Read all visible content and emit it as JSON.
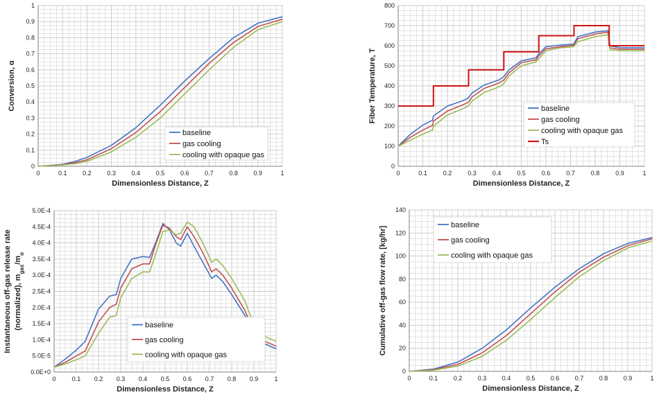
{
  "colors": {
    "baseline": "#4472C4",
    "gas_cooling": "#C0504D",
    "opaque_gas": "#9BBB59",
    "ts": "#CC1111",
    "grid": "#C8C8C8",
    "axis": "#808080"
  },
  "chart_data": [
    {
      "type": "line",
      "xlabel": "Dimensionless Distance, Z",
      "ylabel": "Conversion, α",
      "xlim": [
        0,
        1
      ],
      "ylim": [
        0,
        1
      ],
      "xticks": [
        "0",
        "0.1",
        "0.2",
        "0.3",
        "0.4",
        "0.5",
        "0.6",
        "0.7",
        "0.8",
        "0.9",
        "1"
      ],
      "yticks": [
        "0",
        "0.1",
        "0.2",
        "0.3",
        "0.4",
        "0.5",
        "0.6",
        "0.7",
        "0.8",
        "0.9",
        "1"
      ],
      "legend": "bottom-right",
      "series": [
        {
          "name": "baseline",
          "x": [
            0,
            0.1,
            0.15,
            0.2,
            0.3,
            0.4,
            0.5,
            0.6,
            0.7,
            0.8,
            0.9,
            1
          ],
          "values": [
            0,
            0.012,
            0.03,
            0.055,
            0.13,
            0.24,
            0.38,
            0.53,
            0.67,
            0.8,
            0.89,
            0.93
          ]
        },
        {
          "name": "gas cooling",
          "x": [
            0,
            0.1,
            0.15,
            0.2,
            0.3,
            0.4,
            0.5,
            0.6,
            0.7,
            0.8,
            0.9,
            1
          ],
          "values": [
            0,
            0.01,
            0.022,
            0.04,
            0.11,
            0.21,
            0.34,
            0.49,
            0.64,
            0.77,
            0.87,
            0.915
          ]
        },
        {
          "name": "cooling with opaque gas",
          "x": [
            0,
            0.1,
            0.15,
            0.2,
            0.3,
            0.4,
            0.5,
            0.6,
            0.7,
            0.8,
            0.9,
            1
          ],
          "values": [
            0,
            0.008,
            0.016,
            0.03,
            0.09,
            0.18,
            0.3,
            0.45,
            0.6,
            0.74,
            0.85,
            0.9
          ]
        }
      ]
    },
    {
      "type": "line",
      "xlabel": "Dimensionless Distance, Z",
      "ylabel": "Fiber Temperature, T",
      "xlim": [
        0,
        1
      ],
      "ylim": [
        0,
        800
      ],
      "xticks": [
        "0",
        "0.1",
        "0.2",
        "0.3",
        "0.4",
        "0.5",
        "0.6",
        "0.7",
        "0.8",
        "0.9",
        "1"
      ],
      "yticks": [
        "0",
        "100",
        "200",
        "300",
        "400",
        "500",
        "600",
        "700",
        "800"
      ],
      "legend": "bottom-right",
      "series": [
        {
          "name": "baseline",
          "x": [
            0,
            0.05,
            0.1,
            0.14,
            0.143,
            0.2,
            0.26,
            0.285,
            0.3,
            0.35,
            0.41,
            0.428,
            0.45,
            0.5,
            0.56,
            0.571,
            0.6,
            0.66,
            0.712,
            0.73,
            0.8,
            0.852,
            0.86,
            0.9,
            1
          ],
          "values": [
            100,
            160,
            205,
            230,
            250,
            300,
            325,
            340,
            365,
            405,
            430,
            445,
            480,
            525,
            540,
            560,
            595,
            603,
            608,
            645,
            668,
            675,
            600,
            590,
            590
          ]
        },
        {
          "name": "gas cooling",
          "x": [
            0,
            0.05,
            0.1,
            0.14,
            0.143,
            0.2,
            0.26,
            0.285,
            0.3,
            0.35,
            0.41,
            0.428,
            0.45,
            0.5,
            0.56,
            0.571,
            0.6,
            0.66,
            0.712,
            0.73,
            0.8,
            0.852,
            0.86,
            0.9,
            1
          ],
          "values": [
            100,
            145,
            180,
            205,
            225,
            275,
            305,
            318,
            345,
            388,
            415,
            428,
            465,
            515,
            530,
            550,
            585,
            595,
            602,
            635,
            658,
            668,
            590,
            582,
            582
          ]
        },
        {
          "name": "cooling with opaque gas",
          "x": [
            0,
            0.05,
            0.1,
            0.14,
            0.143,
            0.2,
            0.26,
            0.285,
            0.3,
            0.35,
            0.41,
            0.428,
            0.45,
            0.5,
            0.56,
            0.571,
            0.6,
            0.66,
            0.712,
            0.73,
            0.8,
            0.852,
            0.86,
            0.9,
            1
          ],
          "values": [
            100,
            130,
            160,
            180,
            200,
            255,
            285,
            300,
            325,
            368,
            395,
            410,
            450,
            500,
            520,
            535,
            575,
            590,
            595,
            620,
            645,
            655,
            580,
            575,
            575
          ]
        },
        {
          "name": "Ts",
          "x": [
            0,
            0.143,
            0.143,
            0.286,
            0.286,
            0.429,
            0.429,
            0.571,
            0.571,
            0.714,
            0.714,
            0.857,
            0.857,
            1
          ],
          "values": [
            300,
            300,
            400,
            400,
            480,
            480,
            570,
            570,
            650,
            650,
            700,
            700,
            600,
            600
          ]
        }
      ]
    },
    {
      "type": "line",
      "xlabel": "Dimensionless Distance, Z",
      "ylabel_line1": "Instantaneous off-gas release rate",
      "ylabel_line2": "(normalized), m",
      "ylabel_sub": "gas",
      "ylabel_mid": "/m",
      "ylabel_sub2": "o",
      "xlim": [
        0,
        1
      ],
      "ylim": [
        0,
        0.0005
      ],
      "xticks": [
        "0",
        "0.1",
        "0.2",
        "0.3",
        "0.4",
        "0.5",
        "0.6",
        "0.7",
        "0.8",
        "0.9",
        "1"
      ],
      "yticks": [
        "0.0E+0",
        "5.0E-5",
        "1.0E-4",
        "1.5E-4",
        "2.0E-4",
        "2.5E-4",
        "3.0E-4",
        "3.5E-4",
        "4.0E-4",
        "4.5E-4",
        "5.0E-4"
      ],
      "legend": "bottom-right",
      "series": [
        {
          "name": "baseline",
          "x": [
            0,
            0.05,
            0.1,
            0.14,
            0.2,
            0.25,
            0.28,
            0.3,
            0.35,
            0.4,
            0.43,
            0.46,
            0.49,
            0.52,
            0.55,
            0.57,
            0.6,
            0.63,
            0.67,
            0.71,
            0.73,
            0.76,
            0.8,
            0.86,
            0.9,
            0.95,
            1
          ],
          "values": [
            1.5e-05,
            4e-05,
            6.8e-05,
            9.5e-05,
            0.000195,
            0.000235,
            0.00024,
            0.00029,
            0.00035,
            0.000358,
            0.000355,
            0.000405,
            0.00046,
            0.00044,
            0.0004,
            0.00039,
            0.00043,
            0.00039,
            0.00034,
            0.00029,
            0.0003,
            0.00028,
            0.00024,
            0.000175,
            0.000115,
            8.7e-05,
            7.2e-05
          ]
        },
        {
          "name": "gas cooling",
          "x": [
            0,
            0.05,
            0.1,
            0.14,
            0.2,
            0.25,
            0.28,
            0.3,
            0.35,
            0.4,
            0.43,
            0.46,
            0.49,
            0.52,
            0.55,
            0.57,
            0.6,
            0.63,
            0.67,
            0.71,
            0.73,
            0.76,
            0.8,
            0.86,
            0.9,
            0.95,
            1
          ],
          "values": [
            1.5e-05,
            3e-05,
            5e-05,
            6.5e-05,
            0.000155,
            0.0002,
            0.00021,
            0.00026,
            0.00032,
            0.000335,
            0.000335,
            0.0004,
            0.000455,
            0.000445,
            0.00042,
            0.00041,
            0.00045,
            0.00042,
            0.00037,
            0.00031,
            0.00032,
            0.0003,
            0.00026,
            0.00019,
            0.000125,
            9.5e-05,
            8e-05
          ]
        },
        {
          "name": "cooling with opaque gas",
          "x": [
            0,
            0.05,
            0.1,
            0.14,
            0.2,
            0.25,
            0.28,
            0.3,
            0.35,
            0.4,
            0.43,
            0.46,
            0.49,
            0.52,
            0.55,
            0.57,
            0.6,
            0.63,
            0.67,
            0.71,
            0.73,
            0.76,
            0.8,
            0.86,
            0.9,
            0.95,
            1
          ],
          "values": [
            1.5e-05,
            2.5e-05,
            3.8e-05,
            5e-05,
            0.00012,
            0.00017,
            0.000175,
            0.00023,
            0.00029,
            0.00031,
            0.00031,
            0.00037,
            0.000435,
            0.00044,
            0.000425,
            0.00043,
            0.000465,
            0.00045,
            0.0004,
            0.00034,
            0.00035,
            0.00033,
            0.00029,
            0.00022,
            0.000145,
            0.00011,
            9.5e-05
          ]
        }
      ]
    },
    {
      "type": "line",
      "xlabel": "Dimensionless Distance, Z",
      "ylabel": "Cumulative off-gas flow rate, [kg/hr]",
      "xlim": [
        0,
        1
      ],
      "ylim": [
        0,
        140
      ],
      "xticks": [
        "0",
        "0.1",
        "0.2",
        "0.3",
        "0.4",
        "0.5",
        "0.6",
        "0.7",
        "0.8",
        "0.9",
        "1"
      ],
      "yticks": [
        "0",
        "20",
        "40",
        "60",
        "80",
        "100",
        "120",
        "140"
      ],
      "legend": "top-left",
      "series": [
        {
          "name": "baseline",
          "x": [
            0,
            0.1,
            0.2,
            0.3,
            0.4,
            0.5,
            0.6,
            0.7,
            0.8,
            0.9,
            1
          ],
          "values": [
            0,
            2,
            8,
            20,
            36,
            55,
            73,
            89,
            102,
            111,
            116
          ]
        },
        {
          "name": "gas cooling",
          "x": [
            0,
            0.1,
            0.2,
            0.3,
            0.4,
            0.5,
            0.6,
            0.7,
            0.8,
            0.9,
            1
          ],
          "values": [
            0,
            1.5,
            6,
            16,
            31,
            50,
            69,
            86,
            99,
            109,
            115
          ]
        },
        {
          "name": "cooling with opaque gas",
          "x": [
            0,
            0.1,
            0.2,
            0.3,
            0.4,
            0.5,
            0.6,
            0.7,
            0.8,
            0.9,
            1
          ],
          "values": [
            0,
            1,
            4.5,
            13,
            27,
            45,
            64,
            82,
            96,
            107,
            113
          ]
        }
      ]
    }
  ]
}
